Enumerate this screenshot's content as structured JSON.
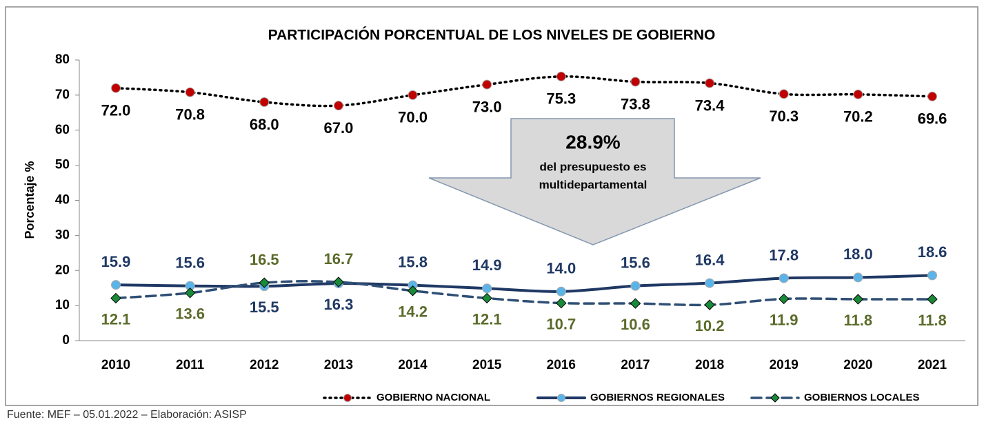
{
  "chart_data": {
    "type": "line",
    "title": "PARTICIPACIÓN PORCENTUAL DE LOS NIVELES DE GOBIERNO",
    "y_label": "Porcentaje %",
    "categories": [
      "2010",
      "2011",
      "2012",
      "2013",
      "2014",
      "2015",
      "2016",
      "2017",
      "2018",
      "2019",
      "2020",
      "2021"
    ],
    "series": [
      {
        "name": "GOBIERNO NACIONAL",
        "color": "#000000",
        "marker_color": "#c00000",
        "label_color": "#000000",
        "style": "dotted",
        "values": [
          72.0,
          70.8,
          68.0,
          67.0,
          70.0,
          73.0,
          75.3,
          73.8,
          73.4,
          70.3,
          70.2,
          69.6
        ],
        "value_labels": [
          "72.0",
          "70.8",
          "68.0",
          "67.0",
          "70.0",
          "73.0",
          "75.3",
          "73.8",
          "73.4",
          "70.3",
          "70.2",
          "69.6"
        ]
      },
      {
        "name": "GOBIERNOS REGIONALES",
        "color": "#1f3864",
        "marker_color": "#5bb4e8",
        "label_color": "#1f3864",
        "style": "solid",
        "values": [
          15.9,
          15.6,
          15.5,
          16.3,
          15.8,
          14.9,
          14.0,
          15.6,
          16.4,
          17.8,
          18.0,
          18.6
        ],
        "value_labels": [
          "15.9",
          "15.6",
          "15.5",
          "16.3",
          "15.8",
          "14.9",
          "14.0",
          "15.6",
          "16.4",
          "17.8",
          "18.0",
          "18.6"
        ]
      },
      {
        "name": "GOBIERNOS LOCALES",
        "color": "#2f4f75",
        "marker_color": "#1a8a3a",
        "label_color": "#5a6b2a",
        "style": "dashed",
        "values": [
          12.1,
          13.6,
          16.5,
          16.7,
          14.2,
          12.1,
          10.7,
          10.6,
          10.2,
          11.9,
          11.8,
          11.8
        ],
        "value_labels": [
          "12.1",
          "13.6",
          "16.5",
          "16.7",
          "14.2",
          "12.1",
          "10.7",
          "10.6",
          "10.2",
          "11.9",
          "11.8",
          "11.8"
        ]
      }
    ],
    "ylim": [
      0,
      80
    ],
    "yticks": [
      0,
      10,
      20,
      30,
      40,
      50,
      60,
      70,
      80
    ],
    "annotation": {
      "headline": "28.9%",
      "lines": [
        "del presupuesto es",
        "multidepartamental"
      ]
    },
    "source": "Fuente: MEF – 05.01.2022 – Elaboración: ASISP"
  }
}
